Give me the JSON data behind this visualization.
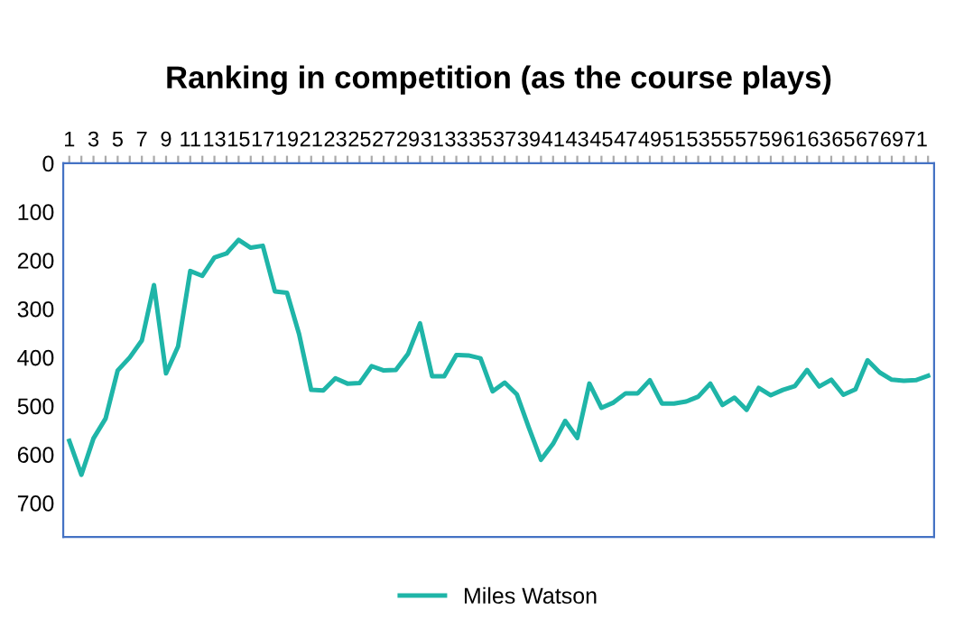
{
  "chart_data": {
    "type": "line",
    "title": "Ranking in competition (as the course plays)",
    "categories": [
      "1",
      null,
      "3",
      null,
      "5",
      null,
      "7",
      null,
      "9",
      null,
      "11",
      null,
      "13",
      null,
      "15",
      null,
      "17",
      null,
      "19",
      null,
      "21",
      null,
      "23",
      null,
      "25",
      null,
      "27",
      null,
      "29",
      null,
      "31",
      null,
      "33",
      null,
      "35",
      null,
      "37",
      null,
      "39",
      null,
      "41",
      null,
      "43",
      null,
      "45",
      null,
      "47",
      null,
      "49",
      null,
      "51",
      null,
      "53",
      null,
      "55",
      null,
      "57",
      null,
      "59",
      null,
      "61",
      null,
      "63",
      null,
      "65",
      null,
      "67",
      null,
      "69",
      null,
      "71",
      null
    ],
    "series": [
      {
        "name": "Miles Watson",
        "color": "#1fb5a8",
        "values": [
          572,
          642,
          567,
          526,
          427,
          400,
          365,
          251,
          433,
          377,
          222,
          232,
          194,
          186,
          158,
          174,
          170,
          264,
          267,
          352,
          467,
          468,
          443,
          454,
          453,
          418,
          427,
          426,
          393,
          330,
          439,
          439,
          395,
          396,
          402,
          470,
          452,
          476,
          545,
          611,
          578,
          531,
          566,
          454,
          504,
          493,
          474,
          474,
          447,
          495,
          495,
          491,
          481,
          454,
          498,
          483,
          508,
          463,
          478,
          467,
          459,
          426,
          460,
          446,
          477,
          466,
          406,
          431,
          446,
          448,
          447,
          438
        ]
      }
    ],
    "ylim": [
      770,
      0
    ],
    "yticks": [
      0,
      100,
      200,
      300,
      400,
      500,
      600,
      700
    ],
    "grid": false,
    "legend": "bottom",
    "marker": "none",
    "line_style": "solid"
  }
}
